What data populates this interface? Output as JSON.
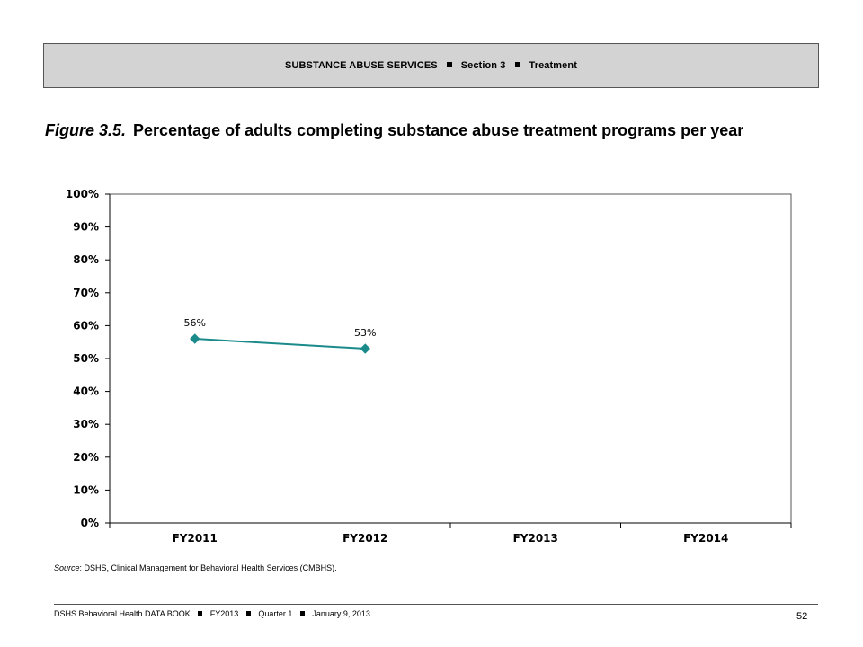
{
  "header": {
    "section_name": "SUBSTANCE ABUSE SERVICES",
    "section_number": "Section 3",
    "topic": "Treatment"
  },
  "figure": {
    "number": "Figure 3.5.",
    "title": "Percentage of adults completing substance abuse treatment programs per year"
  },
  "chart_data": {
    "type": "line",
    "categories": [
      "FY2011",
      "FY2012",
      "FY2013",
      "FY2014"
    ],
    "series": [
      {
        "values": [
          56,
          53,
          null,
          null
        ],
        "data_labels": [
          "56%",
          "53%",
          "",
          ""
        ],
        "color": "#1a8a8a"
      }
    ],
    "y_ticks": [
      "0%",
      "10%",
      "20%",
      "30%",
      "40%",
      "50%",
      "60%",
      "70%",
      "80%",
      "90%",
      "100%"
    ],
    "ylim": [
      0,
      100
    ],
    "title": "",
    "xlabel": "",
    "ylabel": "",
    "grid": false,
    "legend": "none"
  },
  "source": {
    "label": "Source",
    "text": ": DSHS, Clinical Management for Behavioral Health Services (CMBHS)."
  },
  "footer": {
    "book": "DSHS Behavioral Health DATA BOOK",
    "fiscal_year": "FY2013",
    "quarter": "Quarter 1",
    "date": "January  9, 2013",
    "page": "52"
  }
}
